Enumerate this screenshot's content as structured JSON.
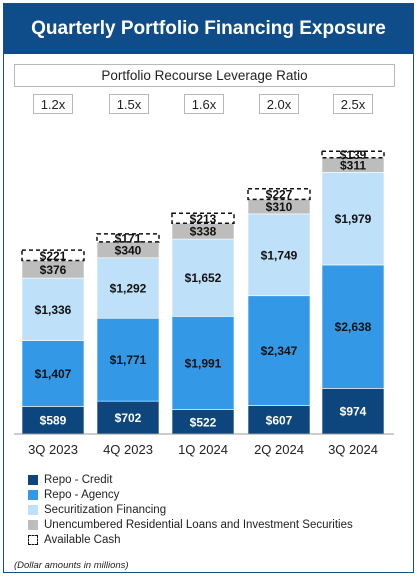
{
  "title": "Quarterly Portfolio Financing Exposure",
  "ratio_title": "Portfolio Recourse Leverage Ratio",
  "footnote": "(Dollar amounts in millions)",
  "colors": {
    "header_bg": "#0e4d8a",
    "repo_credit": "#0c467c",
    "repo_agency": "#3399e6",
    "securitization": "#bfe0f9",
    "unencumbered": "#bdbdbd",
    "available_cash": "#ffffff"
  },
  "chart_data": {
    "type": "bar",
    "stacked": true,
    "categories": [
      "3Q 2023",
      "4Q 2023",
      "1Q 2024",
      "2Q 2024",
      "3Q 2024"
    ],
    "leverage_ratios": [
      "1.2x",
      "1.5x",
      "1.6x",
      "2.0x",
      "2.5x"
    ],
    "series": [
      {
        "name": "Repo - Credit",
        "values": [
          589,
          702,
          522,
          607,
          974
        ],
        "labels": [
          "$589",
          "$702",
          "$522",
          "$607",
          "$974"
        ],
        "color": "#0c467c",
        "label_color": "#ffffff"
      },
      {
        "name": "Repo - Agency",
        "values": [
          1407,
          1771,
          1991,
          2347,
          2638
        ],
        "labels": [
          "$1,407",
          "$1,771",
          "$1,991",
          "$2,347",
          "$2,638"
        ],
        "color": "#3399e6",
        "label_color": "#111111"
      },
      {
        "name": "Securitization Financing",
        "values": [
          1336,
          1292,
          1652,
          1749,
          1979
        ],
        "labels": [
          "$1,336",
          "$1,292",
          "$1,652",
          "$1,749",
          "$1,979"
        ],
        "color": "#bfe0f9",
        "label_color": "#111111"
      },
      {
        "name": "Unencumbered Residential Loans and Investment Securities",
        "values": [
          376,
          340,
          338,
          310,
          311
        ],
        "labels": [
          "$376",
          "$340",
          "$338",
          "$310",
          "$311"
        ],
        "color": "#bdbdbd",
        "label_color": "#111111"
      },
      {
        "name": "Available Cash",
        "values": [
          221,
          171,
          213,
          227,
          139
        ],
        "labels": [
          "$221",
          "$171",
          "$213",
          "$227",
          "$139"
        ],
        "color": "#ffffff",
        "label_color": "#111111",
        "dashed": true
      }
    ],
    "xlabel": "",
    "ylabel": "",
    "grid": false,
    "legend_position": "bottom-left"
  }
}
